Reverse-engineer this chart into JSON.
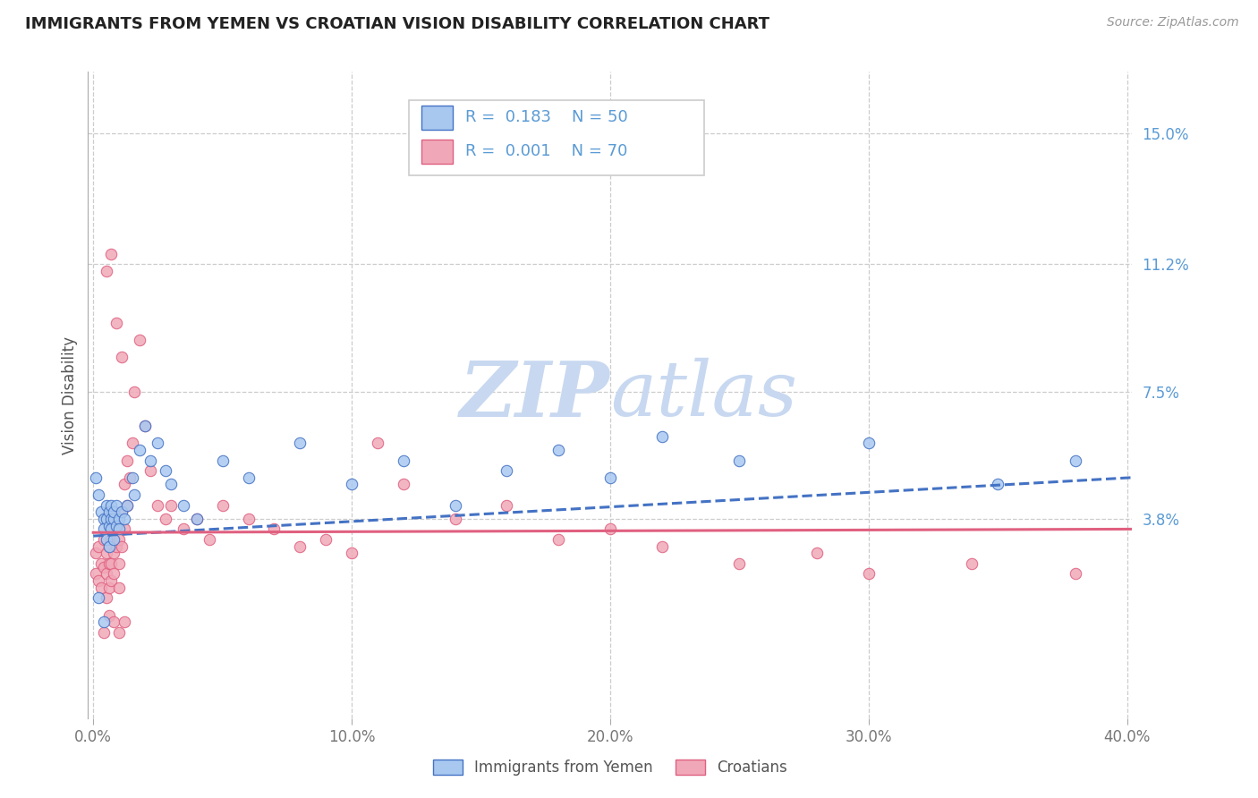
{
  "title_full": "IMMIGRANTS FROM YEMEN VS CROATIAN VISION DISABILITY CORRELATION CHART",
  "source_text": "Source: ZipAtlas.com",
  "ylabel": "Vision Disability",
  "xlim": [
    -0.002,
    0.402
  ],
  "ylim": [
    -0.02,
    0.168
  ],
  "yticks": [
    0.038,
    0.075,
    0.112,
    0.15
  ],
  "ytick_labels": [
    "3.8%",
    "7.5%",
    "11.2%",
    "15.0%"
  ],
  "xticks": [
    0.0,
    0.1,
    0.2,
    0.3,
    0.4
  ],
  "xtick_labels": [
    "0.0%",
    "10.0%",
    "20.0%",
    "30.0%",
    "40.0%"
  ],
  "legend_r1": "R =  0.183",
  "legend_n1": "N = 50",
  "legend_r2": "R =  0.001",
  "legend_n2": "N = 70",
  "color_blue": "#A8C8F0",
  "color_pink": "#F0A8B8",
  "color_blue_line": "#4472C4",
  "color_pink_line": "#E06080",
  "color_text_blue": "#5B9BD5",
  "background_color": "#FFFFFF",
  "watermark_color": "#C8D8F0",
  "series1_x": [
    0.001,
    0.002,
    0.003,
    0.004,
    0.004,
    0.005,
    0.005,
    0.005,
    0.006,
    0.006,
    0.006,
    0.007,
    0.007,
    0.007,
    0.008,
    0.008,
    0.008,
    0.009,
    0.009,
    0.01,
    0.01,
    0.011,
    0.012,
    0.013,
    0.015,
    0.016,
    0.018,
    0.02,
    0.022,
    0.025,
    0.028,
    0.03,
    0.035,
    0.04,
    0.05,
    0.06,
    0.08,
    0.1,
    0.12,
    0.14,
    0.16,
    0.18,
    0.2,
    0.22,
    0.25,
    0.3,
    0.35,
    0.38,
    0.002,
    0.004
  ],
  "series1_y": [
    0.05,
    0.045,
    0.04,
    0.038,
    0.035,
    0.042,
    0.038,
    0.032,
    0.04,
    0.036,
    0.03,
    0.038,
    0.042,
    0.035,
    0.038,
    0.032,
    0.04,
    0.036,
    0.042,
    0.038,
    0.035,
    0.04,
    0.038,
    0.042,
    0.05,
    0.045,
    0.058,
    0.065,
    0.055,
    0.06,
    0.052,
    0.048,
    0.042,
    0.038,
    0.055,
    0.05,
    0.06,
    0.048,
    0.055,
    0.042,
    0.052,
    0.058,
    0.05,
    0.062,
    0.055,
    0.06,
    0.048,
    0.055,
    0.015,
    0.008
  ],
  "series2_x": [
    0.001,
    0.001,
    0.002,
    0.002,
    0.003,
    0.003,
    0.004,
    0.004,
    0.005,
    0.005,
    0.005,
    0.006,
    0.006,
    0.006,
    0.007,
    0.007,
    0.007,
    0.008,
    0.008,
    0.008,
    0.009,
    0.009,
    0.01,
    0.01,
    0.01,
    0.011,
    0.011,
    0.012,
    0.012,
    0.013,
    0.014,
    0.015,
    0.016,
    0.018,
    0.02,
    0.022,
    0.025,
    0.028,
    0.03,
    0.035,
    0.04,
    0.045,
    0.05,
    0.06,
    0.07,
    0.08,
    0.09,
    0.1,
    0.11,
    0.12,
    0.14,
    0.16,
    0.18,
    0.2,
    0.22,
    0.25,
    0.28,
    0.3,
    0.34,
    0.38,
    0.005,
    0.007,
    0.009,
    0.011,
    0.013,
    0.006,
    0.008,
    0.004,
    0.01,
    0.012
  ],
  "series2_y": [
    0.028,
    0.022,
    0.03,
    0.02,
    0.025,
    0.018,
    0.032,
    0.024,
    0.028,
    0.022,
    0.015,
    0.03,
    0.025,
    0.018,
    0.032,
    0.025,
    0.02,
    0.035,
    0.028,
    0.022,
    0.038,
    0.03,
    0.032,
    0.025,
    0.018,
    0.04,
    0.03,
    0.048,
    0.035,
    0.042,
    0.05,
    0.06,
    0.075,
    0.09,
    0.065,
    0.052,
    0.042,
    0.038,
    0.042,
    0.035,
    0.038,
    0.032,
    0.042,
    0.038,
    0.035,
    0.03,
    0.032,
    0.028,
    0.06,
    0.048,
    0.038,
    0.042,
    0.032,
    0.035,
    0.03,
    0.025,
    0.028,
    0.022,
    0.025,
    0.022,
    0.11,
    0.115,
    0.095,
    0.085,
    0.055,
    0.01,
    0.008,
    0.005,
    0.005,
    0.008
  ],
  "trend1_x0": 0.0,
  "trend1_x1": 0.402,
  "trend1_y0": 0.033,
  "trend1_y1": 0.05,
  "trend2_x0": 0.0,
  "trend2_x1": 0.402,
  "trend2_y0": 0.034,
  "trend2_y1": 0.035
}
